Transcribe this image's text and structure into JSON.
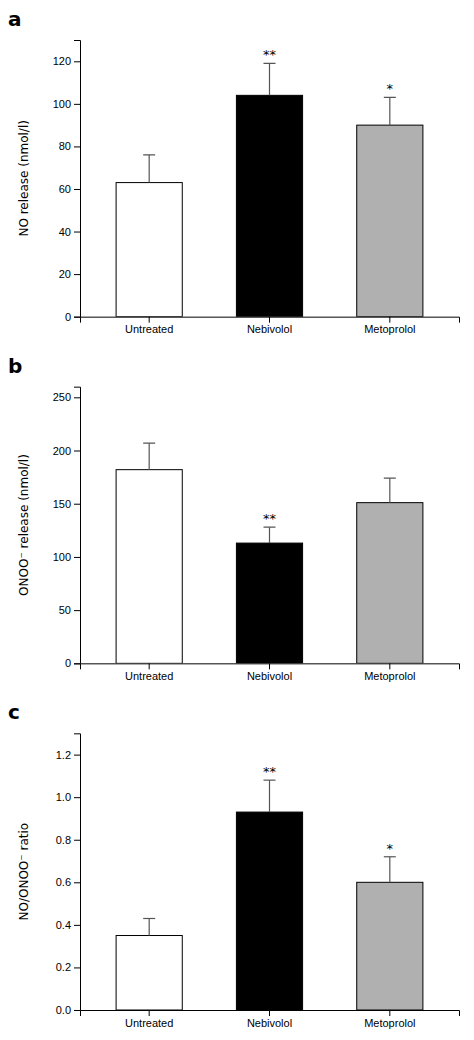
{
  "chart_data": [
    {
      "type": "bar",
      "title": "a",
      "ylabel": "NO release (nmol/l)",
      "categories": [
        "Untreated",
        "Nebivolol",
        "Metoprolol"
      ],
      "values": [
        63,
        104,
        90
      ],
      "errors": [
        13,
        15,
        13
      ],
      "colors": [
        "#ffffff",
        "#000000",
        "#b0b0b0"
      ],
      "annotations": [
        {
          "x": "Nebivolol",
          "text": "**"
        },
        {
          "x": "Metoprolol",
          "text": "*"
        }
      ],
      "ylim": [
        0,
        130
      ],
      "yticks": [
        0,
        20,
        40,
        60,
        80,
        100,
        120
      ],
      "grid": false
    },
    {
      "type": "bar",
      "title": "b",
      "ylabel": "ONOO⁻ release (nmol/l)",
      "categories": [
        "Untreated",
        "Nebivolol",
        "Metoprolol"
      ],
      "values": [
        182,
        113,
        151
      ],
      "errors": [
        25,
        15,
        23
      ],
      "colors": [
        "#ffffff",
        "#000000",
        "#b0b0b0"
      ],
      "annotations": [
        {
          "x": "Nebivolol",
          "text": "**"
        }
      ],
      "ylim": [
        0,
        260
      ],
      "yticks": [
        0,
        50,
        100,
        150,
        200,
        250
      ],
      "grid": false
    },
    {
      "type": "bar",
      "title": "c",
      "ylabel": "NO/ONOO⁻ ratio",
      "categories": [
        "Untreated",
        "Nebivolol",
        "Metoprolol"
      ],
      "values": [
        0.35,
        0.93,
        0.6
      ],
      "errors": [
        0.08,
        0.15,
        0.12
      ],
      "colors": [
        "#ffffff",
        "#000000",
        "#b0b0b0"
      ],
      "annotations": [
        {
          "x": "Nebivolol",
          "text": "**"
        },
        {
          "x": "Metoprolol",
          "text": "*"
        }
      ],
      "ylim": [
        0,
        1.3
      ],
      "yticks": [
        {
          "value": 0,
          "label": "0.0"
        },
        0.2,
        0.4,
        0.6,
        0.8,
        {
          "value": 1,
          "label": "1.0"
        },
        1.2
      ],
      "grid": false
    }
  ]
}
